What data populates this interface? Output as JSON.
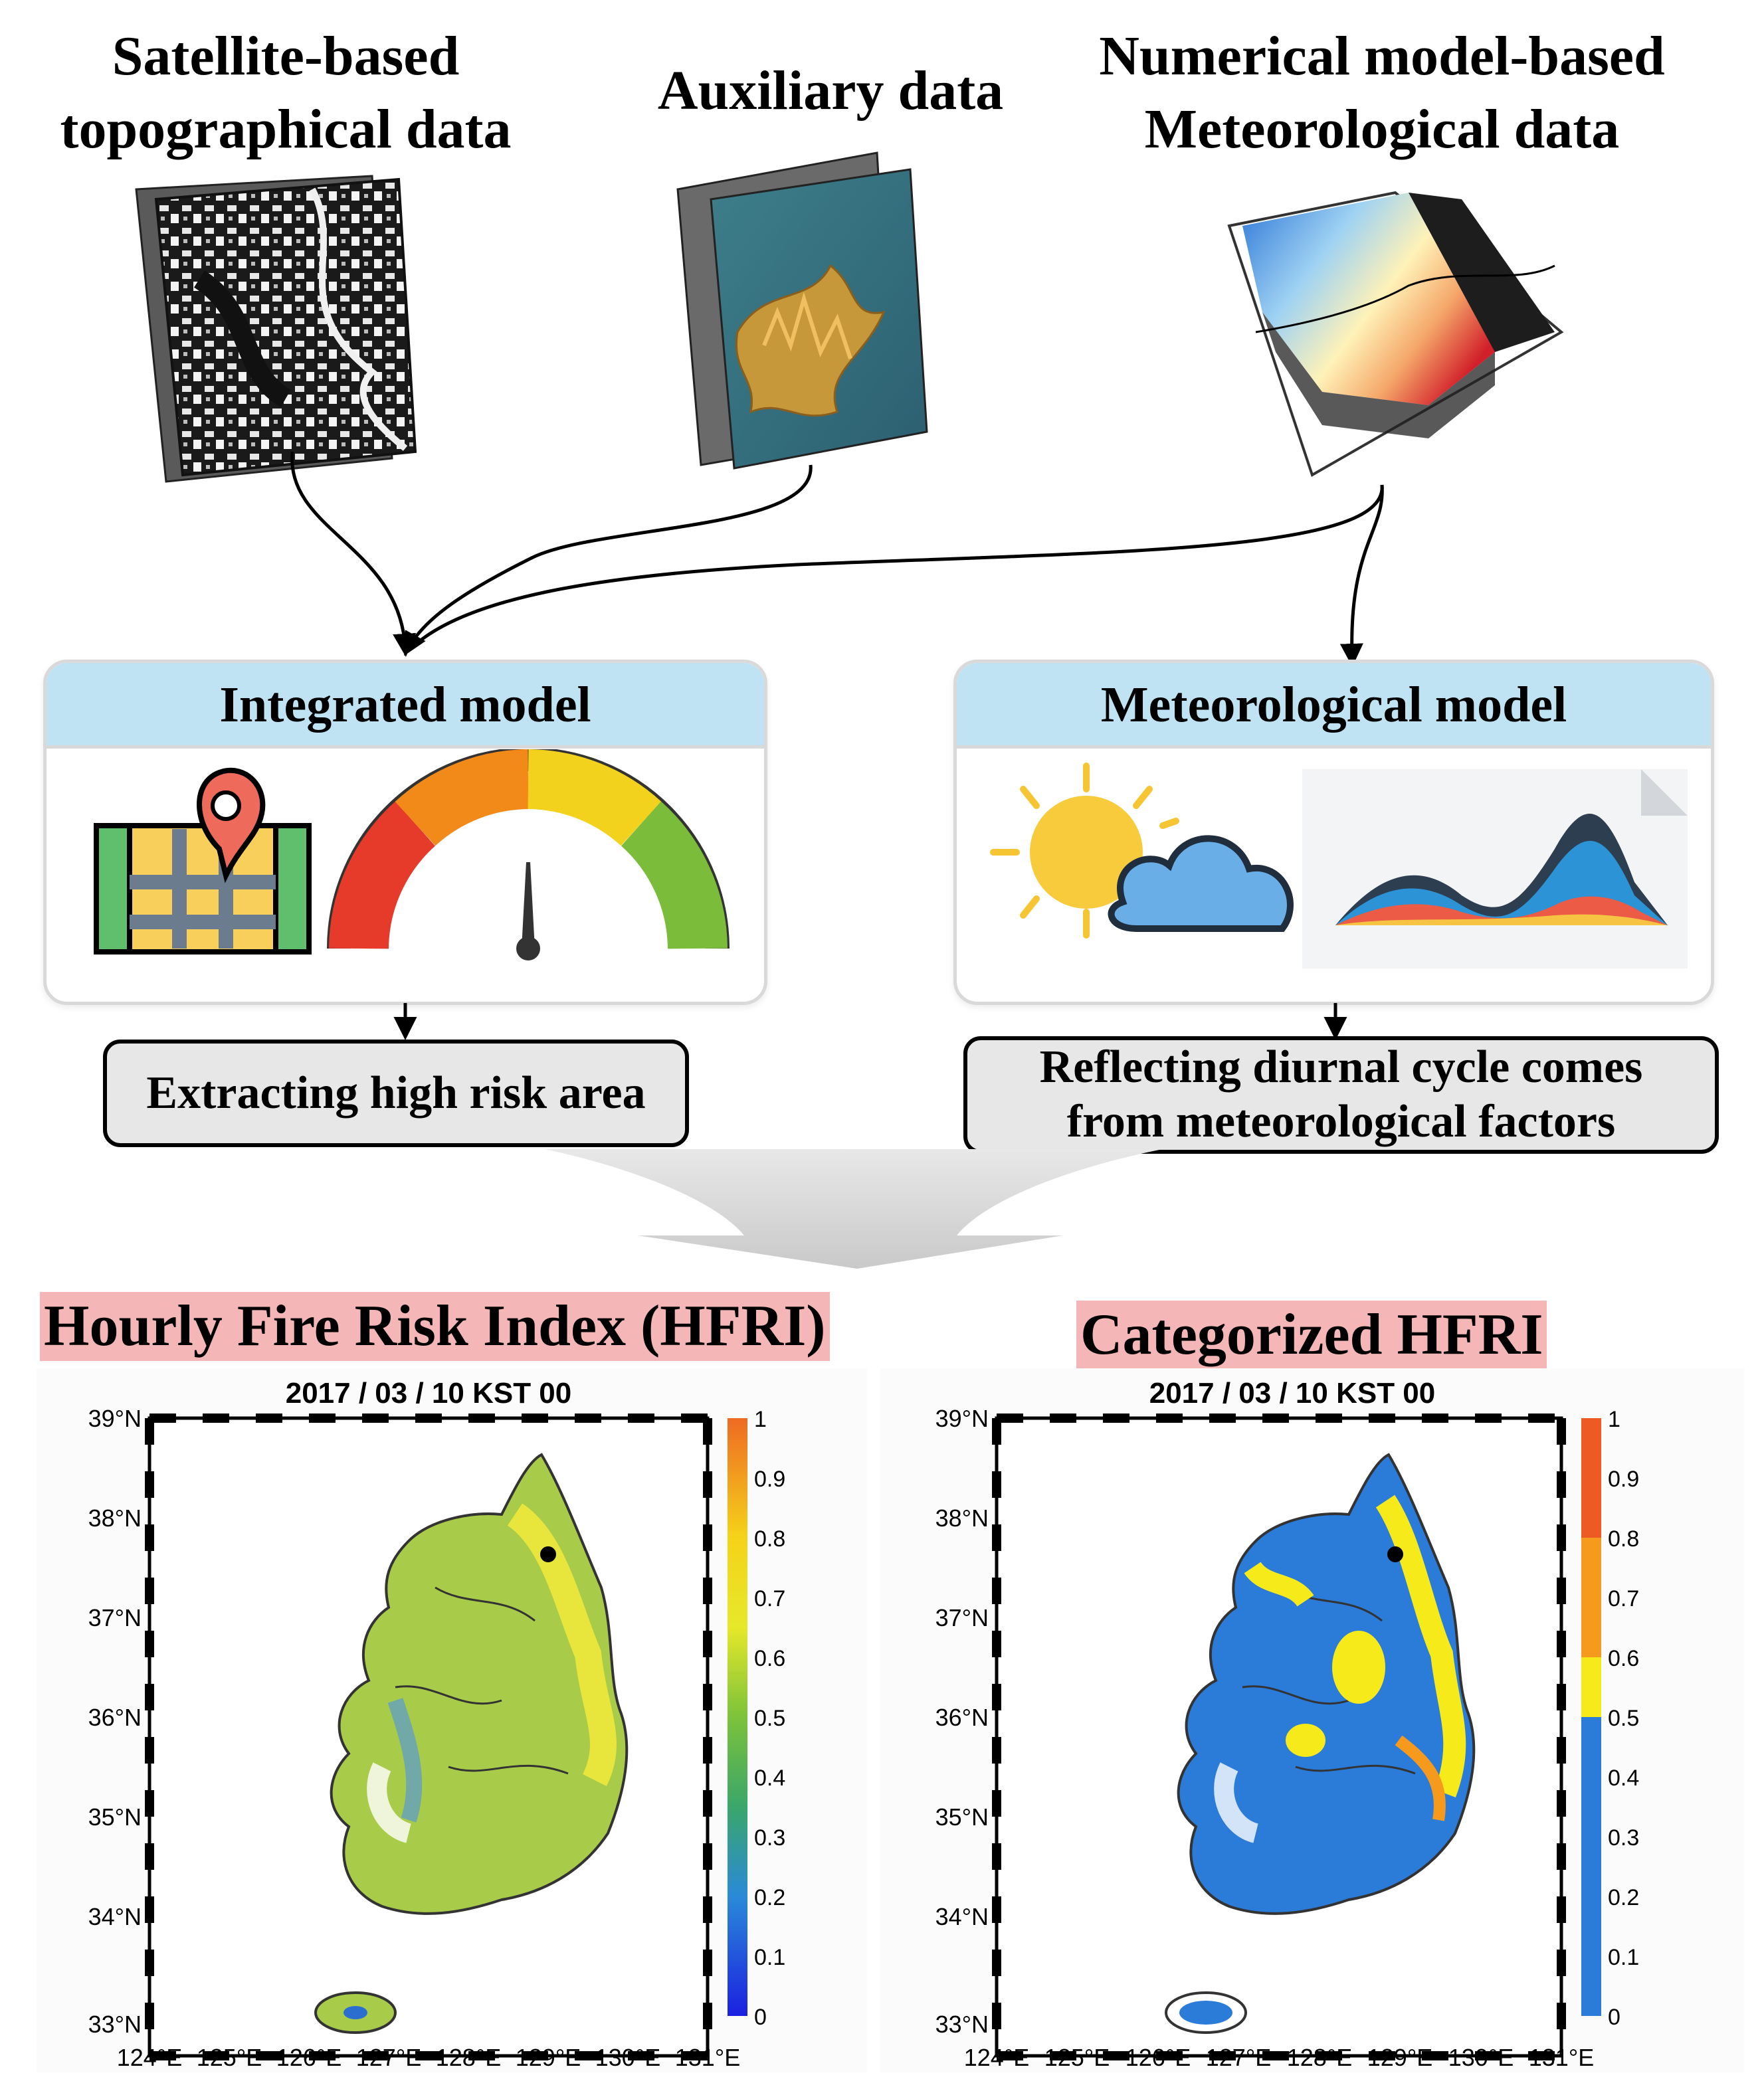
{
  "inputs": {
    "satellite": {
      "line1": "Satellite-based",
      "line2": "topographical data"
    },
    "auxiliary": {
      "line1": "Auxiliary data"
    },
    "numerical": {
      "line1": "Numerical model-based",
      "line2": "Meteorological data"
    }
  },
  "models": {
    "integrated": {
      "title": "Integrated model",
      "output": "Extracting high risk area"
    },
    "meteorological": {
      "title": "Meteorological model",
      "output_line1": "Reflecting diurnal cycle comes",
      "output_line2": "from meteorological factors"
    }
  },
  "results": {
    "hfri": {
      "heading": "Hourly Fire Risk Index (HFRI)",
      "map_title": "2017 / 03 / 10 KST 00"
    },
    "categorized": {
      "heading": "Categorized HFRI",
      "map_title": "2017 / 03 / 10 KST 00"
    },
    "lat_labels": [
      "39°N",
      "38°N",
      "37°N",
      "36°N",
      "35°N",
      "34°N",
      "33°N"
    ],
    "lon_labels": [
      "124°E",
      "125°E",
      "126°E",
      "127°E",
      "128°E",
      "129°E",
      "130°E",
      "131°E"
    ],
    "colorbar_ticks": [
      "1",
      "0.9",
      "0.8",
      "0.7",
      "0.6",
      "0.5",
      "0.4",
      "0.3",
      "0.2",
      "0.1",
      "0"
    ],
    "category_colors": {
      "low": "#2b7bd9",
      "moderate": "#f6ea1a",
      "high": "#f59a1d",
      "very_high": "#ee5a24"
    },
    "continuous_colors": [
      "#1b20e0",
      "#2a8ad8",
      "#3aa66a",
      "#7cc23a",
      "#c9dc2a",
      "#f5e91a",
      "#f5b51c",
      "#ee6a22"
    ]
  }
}
